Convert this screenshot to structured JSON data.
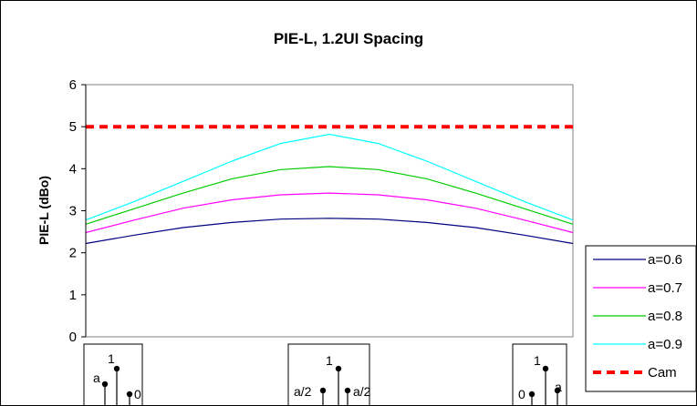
{
  "chart_data": {
    "type": "line",
    "title": "PIE-L, 1.2UI Spacing",
    "xlabel": "",
    "ylabel": "PIE-L (dBo)",
    "ylim": [
      0,
      6
    ],
    "yticks": [
      "0",
      "1",
      "2",
      "3",
      "4",
      "5",
      "6"
    ],
    "grid": false,
    "legend": "right",
    "x": [
      0,
      0.1,
      0.2,
      0.3,
      0.4,
      0.5,
      0.6,
      0.7,
      0.8,
      0.9,
      1.0
    ],
    "series": [
      {
        "name": "a=0.6",
        "color": "#000080",
        "dash": false,
        "values": [
          2.22,
          2.42,
          2.6,
          2.72,
          2.8,
          2.82,
          2.8,
          2.72,
          2.6,
          2.42,
          2.22
        ]
      },
      {
        "name": "a=0.7",
        "color": "#ff00ff",
        "dash": false,
        "values": [
          2.48,
          2.78,
          3.06,
          3.26,
          3.38,
          3.42,
          3.38,
          3.26,
          3.06,
          2.78,
          2.48
        ]
      },
      {
        "name": "a=0.8",
        "color": "#00cc00",
        "dash": false,
        "values": [
          2.68,
          3.05,
          3.42,
          3.76,
          3.98,
          4.05,
          3.98,
          3.76,
          3.42,
          3.05,
          2.68
        ]
      },
      {
        "name": "a=0.9",
        "color": "#00ffff",
        "dash": false,
        "values": [
          2.78,
          3.22,
          3.7,
          4.18,
          4.6,
          4.82,
          4.6,
          4.18,
          3.7,
          3.22,
          2.78
        ]
      },
      {
        "name": "Cam",
        "color": "#ff0000",
        "dash": true,
        "values": [
          5,
          5,
          5,
          5,
          5,
          5,
          5,
          5,
          5,
          5,
          5
        ]
      }
    ],
    "insets": [
      {
        "labels": [
          "a",
          "1",
          "0"
        ]
      },
      {
        "labels": [
          "a/2",
          "1",
          "a/2"
        ]
      },
      {
        "labels": [
          "0",
          "1",
          "a"
        ]
      }
    ]
  }
}
